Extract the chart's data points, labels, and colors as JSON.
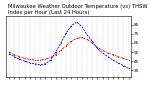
{
  "title": "Milwaukee Weather Outdoor Temperature (vs) THSW Index per Hour (Last 24 Hours)",
  "title_line2": "Last 24 Hours",
  "hours": [
    0,
    1,
    2,
    3,
    4,
    5,
    6,
    7,
    8,
    9,
    10,
    11,
    12,
    13,
    14,
    15,
    16,
    17,
    18,
    19,
    20,
    21,
    22,
    23
  ],
  "temp": [
    55,
    52,
    50,
    48,
    47,
    46,
    46,
    47,
    49,
    52,
    57,
    62,
    67,
    70,
    71,
    69,
    65,
    60,
    57,
    54,
    52,
    50,
    48,
    46
  ],
  "thsw": [
    53,
    50,
    47,
    45,
    43,
    42,
    41,
    42,
    46,
    55,
    65,
    76,
    84,
    88,
    83,
    74,
    67,
    59,
    54,
    50,
    46,
    43,
    40,
    37
  ],
  "ylim": [
    28,
    95
  ],
  "ytick_vals": [
    35,
    45,
    55,
    65,
    75,
    85
  ],
  "ytick_labels": [
    "35",
    "45",
    "55",
    "65",
    "75",
    "85"
  ],
  "xlim": [
    -0.5,
    23.5
  ],
  "temp_color": "#dd0000",
  "thsw_color": "#0000dd",
  "grid_color": "#bbbbbb",
  "bg_color": "#ffffff",
  "title_fontsize": 3.8,
  "tick_fontsize": 3.0,
  "lw_temp": 0.6,
  "lw_thsw": 0.6,
  "marker_size": 0.8
}
